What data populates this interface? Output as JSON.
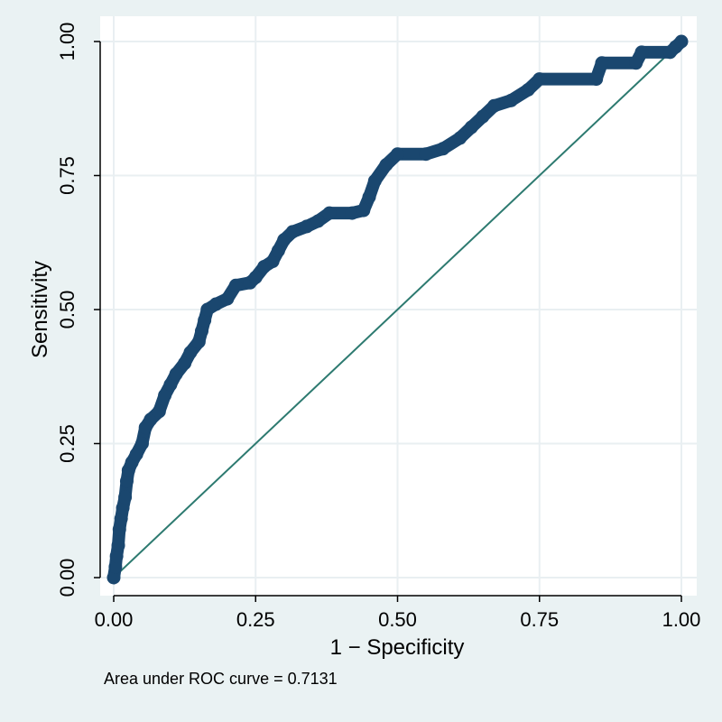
{
  "chart_data": {
    "type": "line",
    "xlabel": "1 − Specificity",
    "ylabel": "Sensitivity",
    "xlim": [
      0,
      1
    ],
    "ylim": [
      0,
      1
    ],
    "x_ticks": [
      "0.00",
      "0.25",
      "0.50",
      "0.75",
      "1.00"
    ],
    "y_ticks": [
      "0.00",
      "0.25",
      "0.50",
      "0.75",
      "1.00"
    ],
    "grid": true,
    "note": "Area under ROC curve = 0.7131",
    "series": [
      {
        "role": "roc-curve",
        "color": "#1a476f",
        "marker": "filled-circle",
        "points": [
          [
            0.0,
            0.0
          ],
          [
            0.003,
            0.02
          ],
          [
            0.005,
            0.04
          ],
          [
            0.008,
            0.06
          ],
          [
            0.01,
            0.09
          ],
          [
            0.013,
            0.11
          ],
          [
            0.016,
            0.13
          ],
          [
            0.02,
            0.15
          ],
          [
            0.023,
            0.18
          ],
          [
            0.026,
            0.2
          ],
          [
            0.032,
            0.215
          ],
          [
            0.04,
            0.23
          ],
          [
            0.05,
            0.25
          ],
          [
            0.056,
            0.28
          ],
          [
            0.065,
            0.295
          ],
          [
            0.08,
            0.31
          ],
          [
            0.09,
            0.34
          ],
          [
            0.1,
            0.36
          ],
          [
            0.11,
            0.38
          ],
          [
            0.125,
            0.4
          ],
          [
            0.135,
            0.42
          ],
          [
            0.15,
            0.44
          ],
          [
            0.155,
            0.46
          ],
          [
            0.16,
            0.48
          ],
          [
            0.165,
            0.5
          ],
          [
            0.18,
            0.51
          ],
          [
            0.2,
            0.52
          ],
          [
            0.215,
            0.545
          ],
          [
            0.24,
            0.55
          ],
          [
            0.25,
            0.56
          ],
          [
            0.265,
            0.58
          ],
          [
            0.28,
            0.59
          ],
          [
            0.29,
            0.61
          ],
          [
            0.3,
            0.63
          ],
          [
            0.315,
            0.645
          ],
          [
            0.34,
            0.655
          ],
          [
            0.36,
            0.665
          ],
          [
            0.38,
            0.68
          ],
          [
            0.42,
            0.68
          ],
          [
            0.44,
            0.685
          ],
          [
            0.45,
            0.71
          ],
          [
            0.46,
            0.74
          ],
          [
            0.48,
            0.77
          ],
          [
            0.5,
            0.79
          ],
          [
            0.55,
            0.79
          ],
          [
            0.58,
            0.8
          ],
          [
            0.61,
            0.82
          ],
          [
            0.63,
            0.84
          ],
          [
            0.65,
            0.86
          ],
          [
            0.67,
            0.88
          ],
          [
            0.7,
            0.89
          ],
          [
            0.73,
            0.91
          ],
          [
            0.75,
            0.93
          ],
          [
            0.85,
            0.93
          ],
          [
            0.86,
            0.96
          ],
          [
            0.92,
            0.96
          ],
          [
            0.93,
            0.98
          ],
          [
            0.98,
            0.98
          ],
          [
            0.99,
            0.99
          ],
          [
            1.0,
            1.0
          ]
        ]
      },
      {
        "role": "reference-line",
        "color": "#2d7a70",
        "points": [
          [
            0,
            0
          ],
          [
            1,
            1
          ]
        ]
      }
    ]
  }
}
